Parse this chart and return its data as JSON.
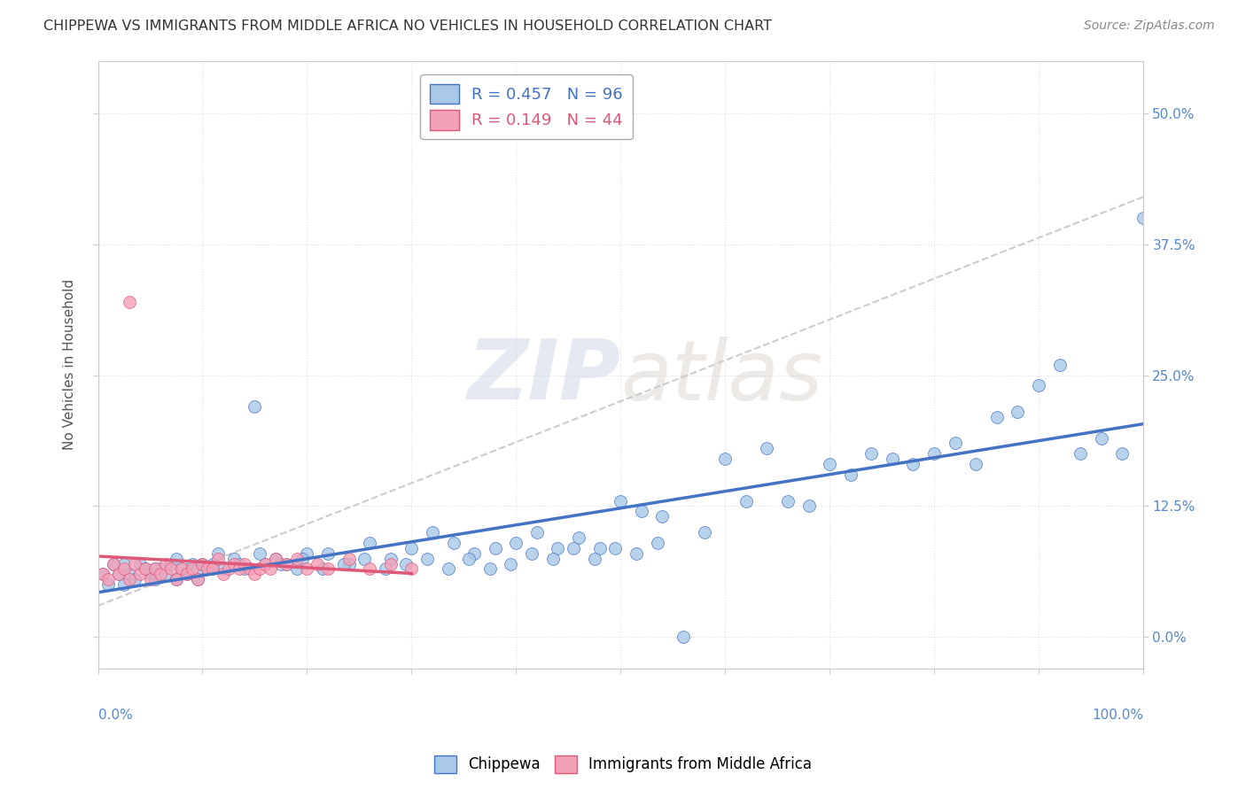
{
  "title": "CHIPPEWA VS IMMIGRANTS FROM MIDDLE AFRICA NO VEHICLES IN HOUSEHOLD CORRELATION CHART",
  "source": "Source: ZipAtlas.com",
  "ylabel": "No Vehicles in Household",
  "ytick_vals": [
    0.0,
    0.125,
    0.25,
    0.375,
    0.5
  ],
  "ytick_labels_right": [
    "0.0%",
    "12.5%",
    "25.0%",
    "37.5%",
    "50.0%"
  ],
  "xlim": [
    0.0,
    1.0
  ],
  "ylim": [
    -0.03,
    0.55
  ],
  "color_blue": "#A8C8E8",
  "color_pink": "#F4A0B8",
  "trendline_blue": "#4472C4",
  "trendline_pink": "#E05878",
  "trendline_gray": "#CCCCCC",
  "watermark": "ZIPatlas",
  "background": "#FFFFFF",
  "blue_scatter_x": [
    0.005,
    0.01,
    0.015,
    0.02,
    0.025,
    0.03,
    0.035,
    0.04,
    0.045,
    0.05,
    0.055,
    0.06,
    0.065,
    0.07,
    0.075,
    0.08,
    0.085,
    0.09,
    0.095,
    0.1,
    0.105,
    0.11,
    0.115,
    0.12,
    0.13,
    0.14,
    0.15,
    0.16,
    0.17,
    0.18,
    0.19,
    0.2,
    0.22,
    0.24,
    0.26,
    0.28,
    0.3,
    0.32,
    0.34,
    0.36,
    0.38,
    0.4,
    0.42,
    0.44,
    0.46,
    0.48,
    0.5,
    0.52,
    0.54,
    0.56,
    0.58,
    0.6,
    0.62,
    0.64,
    0.66,
    0.68,
    0.7,
    0.72,
    0.74,
    0.76,
    0.78,
    0.8,
    0.82,
    0.84,
    0.86,
    0.88,
    0.9,
    0.92,
    0.94,
    0.96,
    0.98,
    1.0,
    0.025,
    0.055,
    0.075,
    0.095,
    0.135,
    0.155,
    0.175,
    0.195,
    0.215,
    0.235,
    0.255,
    0.275,
    0.295,
    0.315,
    0.335,
    0.355,
    0.375,
    0.395,
    0.415,
    0.435,
    0.455,
    0.475,
    0.495,
    0.515,
    0.535
  ],
  "blue_scatter_y": [
    0.06,
    0.05,
    0.07,
    0.06,
    0.05,
    0.06,
    0.055,
    0.07,
    0.065,
    0.06,
    0.055,
    0.065,
    0.06,
    0.07,
    0.055,
    0.065,
    0.06,
    0.07,
    0.055,
    0.07,
    0.065,
    0.07,
    0.08,
    0.065,
    0.075,
    0.065,
    0.22,
    0.07,
    0.075,
    0.07,
    0.065,
    0.08,
    0.08,
    0.07,
    0.09,
    0.075,
    0.085,
    0.1,
    0.09,
    0.08,
    0.085,
    0.09,
    0.1,
    0.085,
    0.095,
    0.085,
    0.13,
    0.12,
    0.115,
    0.0,
    0.1,
    0.17,
    0.13,
    0.18,
    0.13,
    0.125,
    0.165,
    0.155,
    0.175,
    0.17,
    0.165,
    0.175,
    0.185,
    0.165,
    0.21,
    0.215,
    0.24,
    0.26,
    0.175,
    0.19,
    0.175,
    0.4,
    0.07,
    0.065,
    0.075,
    0.065,
    0.07,
    0.08,
    0.07,
    0.075,
    0.065,
    0.07,
    0.075,
    0.065,
    0.07,
    0.075,
    0.065,
    0.075,
    0.065,
    0.07,
    0.08,
    0.075,
    0.085,
    0.075,
    0.085,
    0.08,
    0.09
  ],
  "pink_scatter_x": [
    0.005,
    0.01,
    0.015,
    0.02,
    0.025,
    0.03,
    0.035,
    0.04,
    0.045,
    0.05,
    0.055,
    0.06,
    0.065,
    0.07,
    0.075,
    0.08,
    0.085,
    0.09,
    0.095,
    0.1,
    0.105,
    0.11,
    0.115,
    0.12,
    0.125,
    0.13,
    0.135,
    0.14,
    0.145,
    0.15,
    0.155,
    0.16,
    0.165,
    0.17,
    0.18,
    0.19,
    0.2,
    0.21,
    0.22,
    0.24,
    0.26,
    0.28,
    0.3,
    0.03
  ],
  "pink_scatter_y": [
    0.06,
    0.055,
    0.07,
    0.06,
    0.065,
    0.055,
    0.07,
    0.06,
    0.065,
    0.055,
    0.065,
    0.06,
    0.07,
    0.065,
    0.055,
    0.065,
    0.06,
    0.065,
    0.055,
    0.07,
    0.065,
    0.065,
    0.075,
    0.06,
    0.065,
    0.07,
    0.065,
    0.07,
    0.065,
    0.06,
    0.065,
    0.07,
    0.065,
    0.075,
    0.07,
    0.075,
    0.065,
    0.07,
    0.065,
    0.075,
    0.065,
    0.07,
    0.065,
    0.32
  ]
}
